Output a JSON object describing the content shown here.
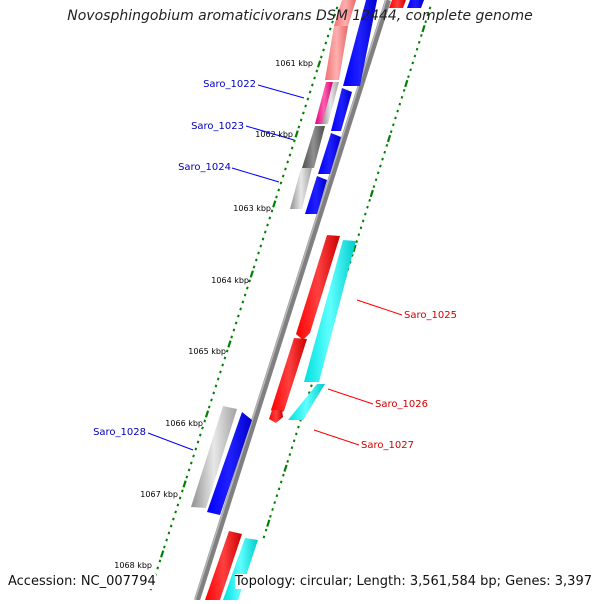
{
  "title": "Novosphingobium aromaticivorans DSM 12444, complete genome",
  "footer": {
    "accession": "Accession: NC_007794",
    "topology": "Topology: circular; Length: 3,561,584 bp; Genes: 3,397"
  },
  "scale_labels": [
    "1061 kbp",
    "1062 kbp",
    "1063 kbp",
    "1064 kbp",
    "1065 kbp",
    "1066 kbp",
    "1067 kbp",
    "1068 kbp"
  ],
  "gene_labels": {
    "left": [
      "Saro_1022",
      "Saro_1023",
      "Saro_1024",
      "Saro_1028"
    ],
    "right": [
      "Saro_1025",
      "Saro_1026",
      "Saro_1027"
    ]
  },
  "colors": {
    "backbone": "#808080",
    "reverse_cds": "#ff0000",
    "forward_cds": "#0000ff",
    "reverse_gene": "#00ffff",
    "pink_gene": "#ff1493",
    "gray_gene": "#a0a0a0",
    "dark_gray_gene": "#606060",
    "salmon_gene": "#f08080",
    "tick": "#008000",
    "label_left": "#0000c0",
    "label_right": "#d00000"
  }
}
